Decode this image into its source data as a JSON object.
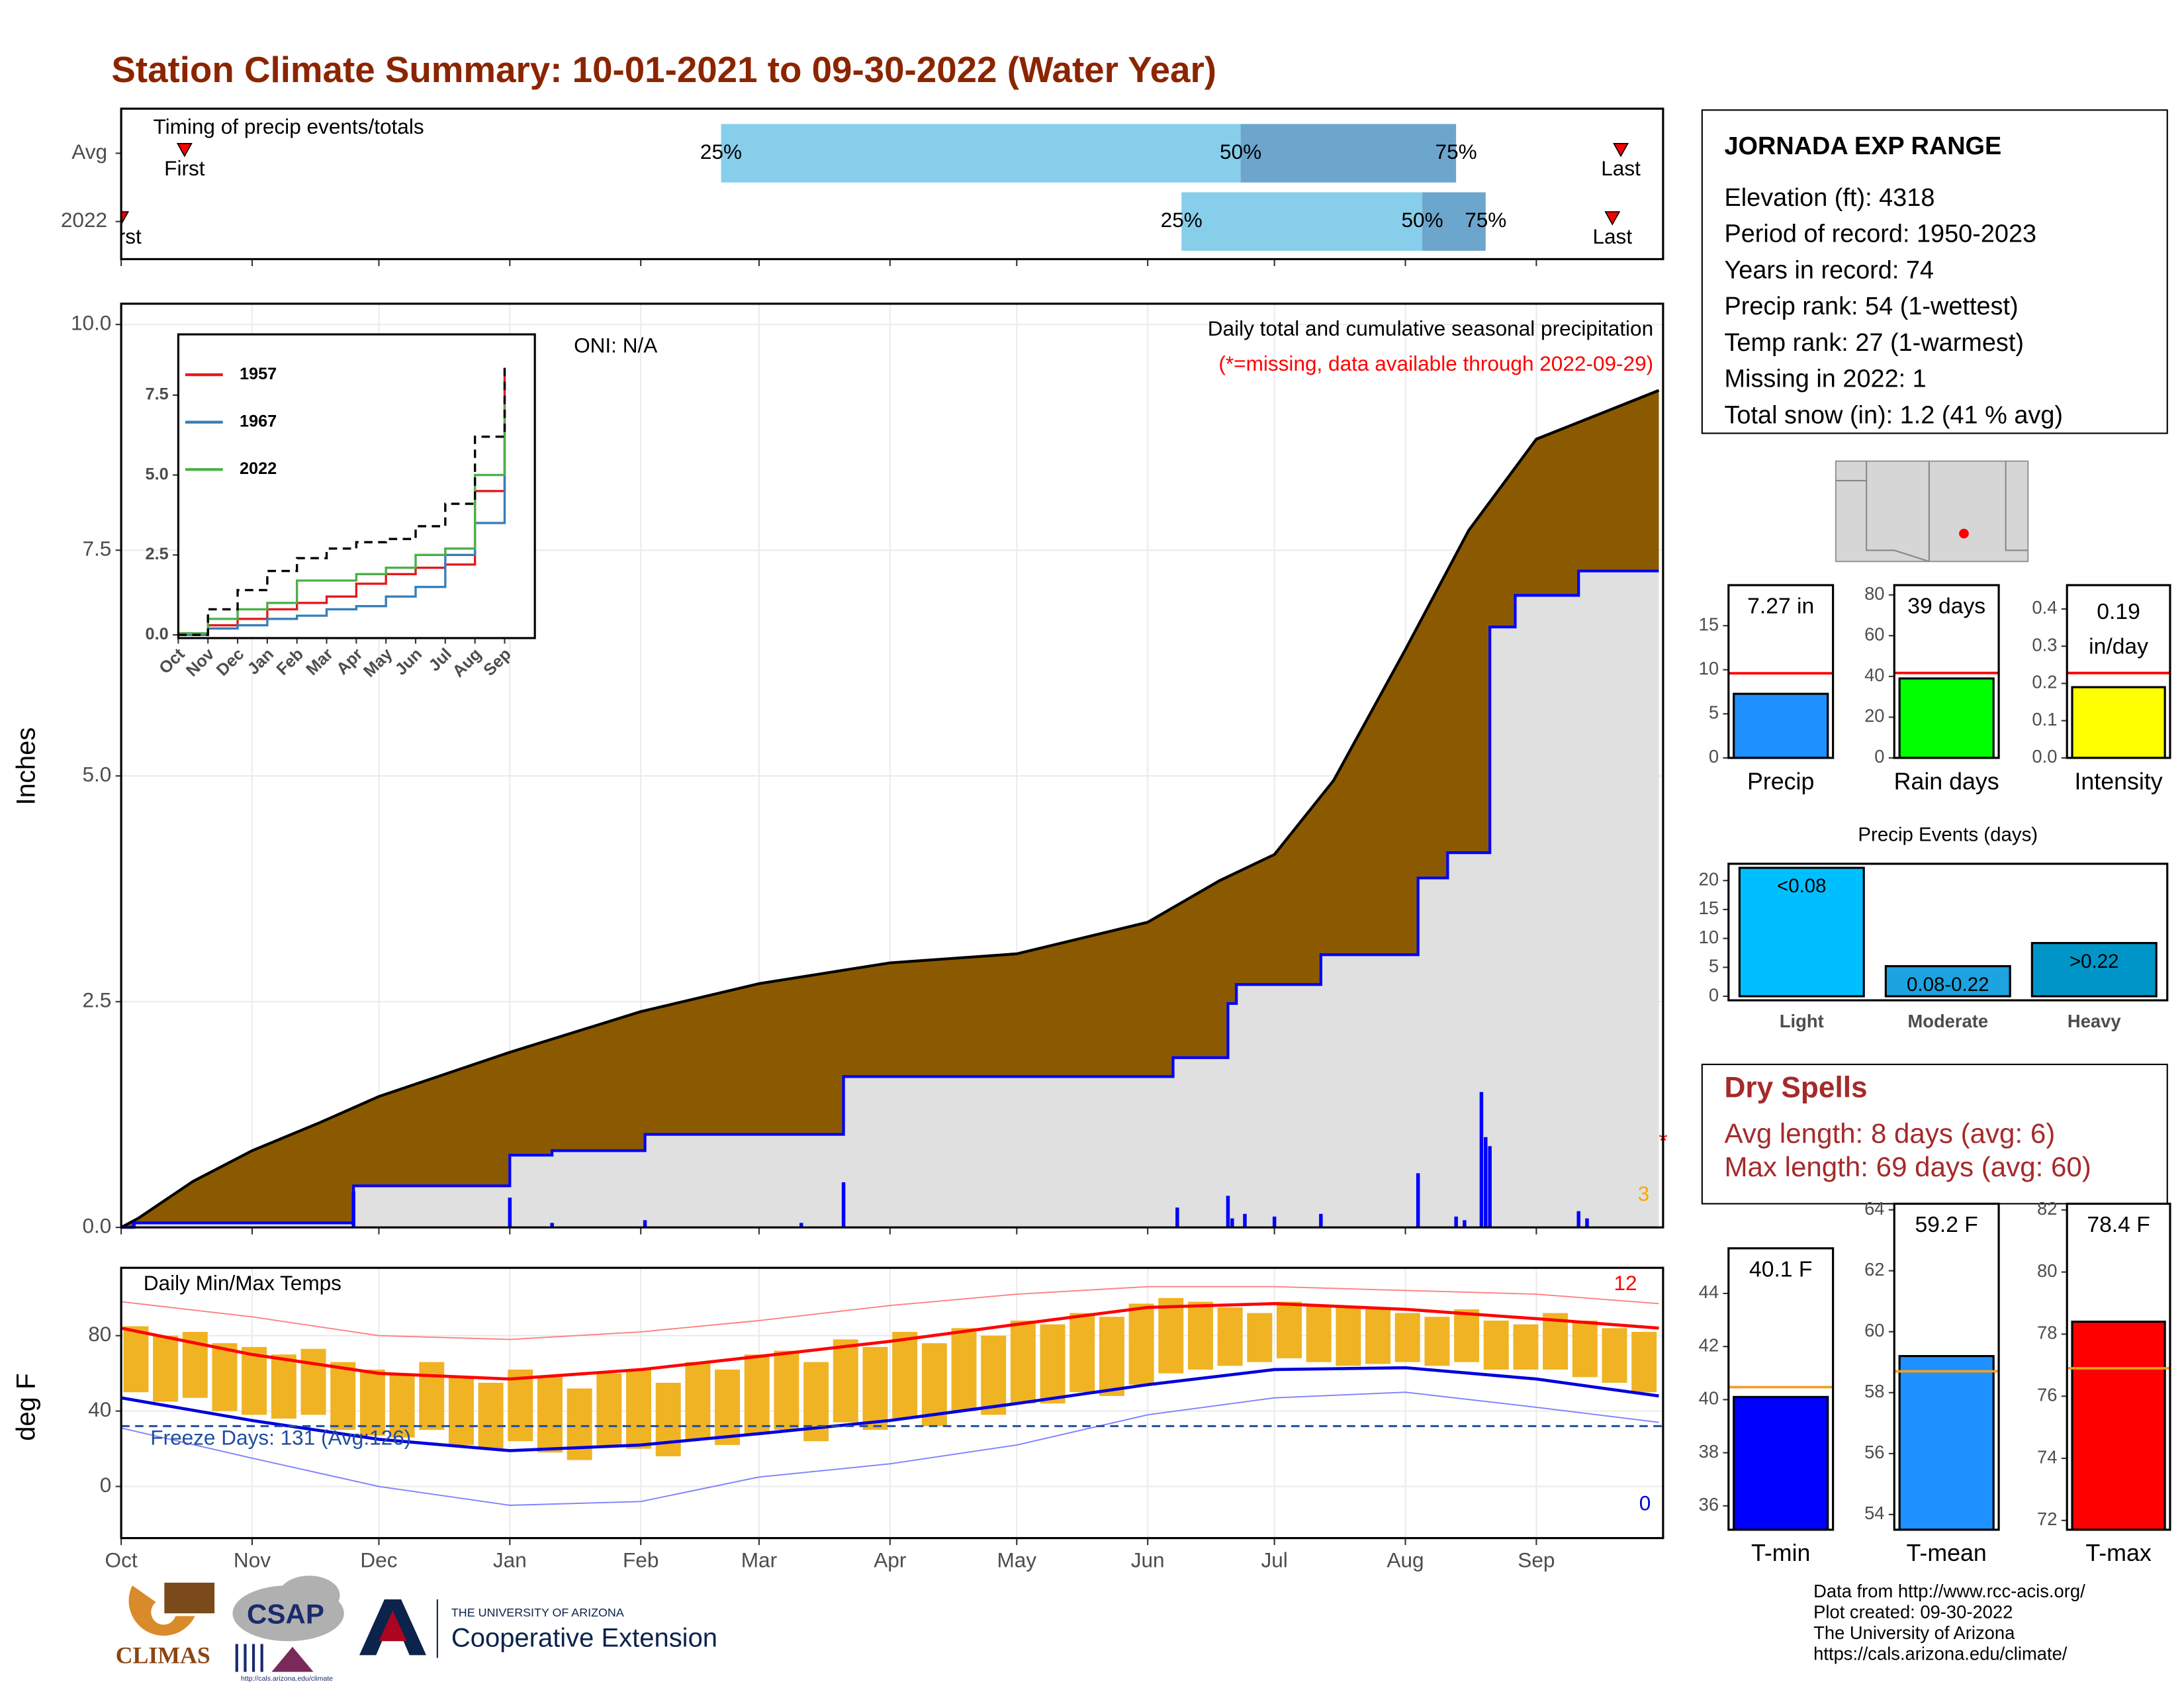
{
  "title": "Station Climate Summary: 10-01-2021 to 09-30-2022 (Water Year)",
  "station_info": {
    "title": "JORNADA EXP RANGE",
    "lines": [
      "Elevation (ft): 4318",
      "Period of record: 1950-2023",
      "Years in record: 74",
      "Precip rank: 54 (1-wettest)",
      "Temp rank: 27 (1-warmest)",
      "Missing in 2022: 1",
      "Total snow (in): 1.2 (41 % avg)"
    ]
  },
  "dry_spells": {
    "title": "Dry Spells",
    "lines": [
      "Avg length: 8 days (avg: 6)",
      "Max length: 69 days (avg: 60)"
    ]
  },
  "footer": [
    "Data from http://www.rcc-acis.org/",
    "Plot created: 09-30-2022",
    "The University of Arizona",
    "https://cals.arizona.edu/climate/"
  ],
  "logos": {
    "climas": "CLIMAS",
    "csap": "CSAP",
    "csap_url": "http://cals.arizona.edu/climate",
    "ua_line1": "THE UNIVERSITY OF ARIZONA",
    "ua_line2": "Cooperative Extension"
  },
  "chart_data": [
    {
      "type": "timing",
      "title": "Timing of precip events/totals",
      "rows": [
        "Avg",
        "2022"
      ],
      "quantile_labels": [
        "25%",
        "50%",
        "75%"
      ],
      "quantiles": [
        [
          142,
          265,
          316
        ],
        [
          251,
          308,
          323
        ]
      ],
      "first": [
        15,
        0
      ],
      "last": [
        355,
        353
      ],
      "first_label": "First",
      "last_label": "Last",
      "colors": [
        "#87ceeb",
        "#6ca6cd"
      ],
      "marker_color": "#ff0000",
      "xlim": [
        0,
        365
      ]
    },
    {
      "type": "step",
      "title": "Daily total and cumulative seasonal precipitation",
      "subtitle": "(*=missing, data available through 2022-09-29)",
      "annotation": "ONI: N/A",
      "y_label": "Inches",
      "missing_label": "*",
      "count_label": "3",
      "grid": true,
      "xlim": [
        0,
        365
      ],
      "xticks": [
        0,
        31,
        61,
        92,
        123,
        151,
        182,
        212,
        243,
        273,
        304,
        335
      ],
      "ylim": [
        0,
        10.23
      ],
      "yticks": [
        {
          "value": 0,
          "label": "0.0"
        },
        {
          "value": 2.5,
          "label": "2.5"
        },
        {
          "value": 5,
          "label": "5.0"
        },
        {
          "value": 7.5,
          "label": "7.5"
        },
        {
          "value": 10,
          "label": "10.0"
        }
      ],
      "series": [
        {
          "color": "#000000",
          "fill": "#8b5a00",
          "step": false,
          "x": [
            0,
            4,
            17,
            31,
            47,
            61,
            92,
            123,
            151,
            182,
            212,
            243,
            260,
            273,
            287,
            304,
            319,
            335,
            364
          ],
          "values": [
            0,
            0.1,
            0.51,
            0.85,
            1.16,
            1.45,
            1.94,
            2.39,
            2.7,
            2.93,
            3.03,
            3.38,
            3.84,
            4.13,
            4.95,
            6.4,
            7.72,
            8.73,
            9.27
          ]
        },
        {
          "color": "#0000ff",
          "fill": "#e0e0e0",
          "step": true,
          "x": [
            0,
            3,
            55,
            92,
            102,
            124,
            171,
            249,
            262,
            264,
            284,
            307,
            314,
            324,
            330,
            345,
            364
          ],
          "values": [
            0,
            0.05,
            0.46,
            0.8,
            0.85,
            1.03,
            1.67,
            1.88,
            2.48,
            2.69,
            3.02,
            3.87,
            4.15,
            6.65,
            7.0,
            7.27,
            7.27
          ]
        }
      ],
      "daily": {
        "color": "#0000ff",
        "x": [
          3,
          55,
          92,
          102,
          124,
          161,
          171,
          250,
          262,
          263,
          266,
          273,
          284,
          307,
          316,
          318,
          322,
          323,
          324,
          345,
          347
        ],
        "values": [
          0.05,
          0.4,
          0.33,
          0.05,
          0.08,
          0.05,
          0.5,
          0.22,
          0.35,
          0.1,
          0.15,
          0.12,
          0.15,
          0.6,
          0.12,
          0.08,
          1.5,
          1.0,
          0.9,
          0.18,
          0.1
        ]
      }
    },
    {
      "type": "line",
      "categories": [
        "Oct",
        "Nov",
        "Dec",
        "Jan",
        "Feb",
        "Mar",
        "Apr",
        "May",
        "Jun",
        "Jul",
        "Aug",
        "Sep"
      ],
      "ylim": [
        -0.1,
        9.4
      ],
      "yticks": [
        {
          "value": 0,
          "label": "0.0"
        },
        {
          "value": 2.5,
          "label": "2.5"
        },
        {
          "value": 5,
          "label": "5.0"
        },
        {
          "value": 7.5,
          "label": "7.5"
        }
      ],
      "series": [
        {
          "name": "1957",
          "color": "#e41a1c",
          "values": [
            0,
            0.3,
            0.5,
            0.8,
            1.0,
            1.2,
            1.6,
            1.9,
            2.1,
            2.2,
            4.5,
            8.3
          ]
        },
        {
          "name": "1967",
          "color": "#377eb8",
          "values": [
            0,
            0.2,
            0.3,
            0.5,
            0.6,
            0.8,
            0.9,
            1.2,
            1.5,
            2.5,
            3.5,
            6.0
          ]
        },
        {
          "name": "2022",
          "color": "#4daf4a",
          "values": [
            0.05,
            0.5,
            0.8,
            1.0,
            1.7,
            1.7,
            1.9,
            2.1,
            2.5,
            2.7,
            5.0,
            7.2
          ]
        },
        {
          "color": "#000000",
          "dash": true,
          "values": [
            0,
            0.8,
            1.4,
            2.0,
            2.4,
            2.7,
            2.9,
            3.0,
            3.4,
            4.1,
            6.2,
            8.5
          ]
        }
      ]
    },
    {
      "type": "temp",
      "title": "Daily Min/Max Temps",
      "y_label": "deg F",
      "freeze": 32,
      "freeze_color": "#1f4e9e",
      "freeze_label": "Freeze Days: 131 (Avg:126)",
      "high_count_label": "12",
      "low_count_label": "0",
      "grid": true,
      "bar_color": "#f0b323",
      "xlim": [
        0,
        365
      ],
      "xticks": [
        {
          "value": 0,
          "label": "Oct"
        },
        {
          "value": 31,
          "label": "Nov"
        },
        {
          "value": 61,
          "label": "Dec"
        },
        {
          "value": 92,
          "label": "Jan"
        },
        {
          "value": 123,
          "label": "Feb"
        },
        {
          "value": 151,
          "label": "Mar"
        },
        {
          "value": 182,
          "label": "Apr"
        },
        {
          "value": 212,
          "label": "May"
        },
        {
          "value": 243,
          "label": "Jun"
        },
        {
          "value": 273,
          "label": "Jul"
        },
        {
          "value": 304,
          "label": "Aug"
        },
        {
          "value": 335,
          "label": "Sep"
        }
      ],
      "ylim": [
        -27.4,
        116
      ],
      "yticks": [
        0,
        40,
        80
      ],
      "x": [
        3.5,
        10.5,
        17.5,
        24.5,
        31.5,
        38.5,
        45.5,
        52.5,
        59.5,
        66.5,
        73.5,
        80.5,
        87.5,
        94.5,
        101.5,
        108.5,
        115.5,
        122.5,
        129.5,
        136.5,
        143.5,
        150.5,
        157.5,
        164.5,
        171.5,
        178.5,
        185.5,
        192.5,
        199.5,
        206.5,
        213.5,
        220.5,
        227.5,
        234.5,
        241.5,
        248.5,
        255.5,
        262.5,
        269.5,
        276.5,
        283.5,
        290.5,
        297.5,
        304.5,
        311.5,
        318.5,
        325.5,
        332.5,
        339.5,
        346.5,
        353.5,
        360.5
      ],
      "tmax": [
        85,
        80,
        82,
        76,
        74,
        70,
        73,
        66,
        62,
        60,
        66,
        58,
        55,
        62,
        58,
        52,
        60,
        62,
        55,
        66,
        62,
        70,
        72,
        66,
        78,
        74,
        82,
        76,
        84,
        80,
        88,
        86,
        92,
        90,
        97,
        100,
        98,
        95,
        92,
        98,
        96,
        95,
        94,
        92,
        90,
        94,
        88,
        86,
        92,
        88,
        84,
        82
      ],
      "tmin": [
        50,
        45,
        47,
        40,
        38,
        36,
        38,
        30,
        27,
        26,
        30,
        22,
        20,
        24,
        18,
        14,
        22,
        20,
        16,
        25,
        22,
        28,
        30,
        24,
        34,
        30,
        36,
        32,
        40,
        38,
        44,
        44,
        50,
        48,
        54,
        60,
        62,
        64,
        66,
        68,
        66,
        64,
        65,
        66,
        64,
        66,
        62,
        62,
        62,
        58,
        55,
        50
      ],
      "line_x": [
        0,
        31,
        61,
        92,
        123,
        151,
        182,
        212,
        243,
        273,
        304,
        335,
        364
      ],
      "avg_lines": [
        {
          "color": "#ff0000",
          "values": [
            84,
            70,
            60,
            57,
            62,
            69,
            77,
            86,
            95,
            97,
            94,
            89,
            84
          ]
        },
        {
          "color": "#0000dd",
          "values": [
            47,
            35,
            25,
            19,
            22,
            28,
            35,
            44,
            54,
            62,
            63,
            57,
            48
          ]
        }
      ],
      "record_lines": [
        {
          "color": "#ff8080",
          "values": [
            98,
            90,
            80,
            78,
            82,
            88,
            96,
            102,
            106,
            106,
            104,
            102,
            97
          ]
        },
        {
          "color": "#8080ff",
          "values": [
            31,
            15,
            0,
            -10,
            -8,
            5,
            12,
            22,
            38,
            47,
            50,
            42,
            34
          ]
        }
      ]
    },
    {
      "type": "bar",
      "categories": [
        "Precip"
      ],
      "values": [
        7.27
      ],
      "value_labels": [
        "7.27 in"
      ],
      "avg": 9.6,
      "avg_color": "#ff0000",
      "colors": [
        "#1e90ff"
      ],
      "ylim": [
        0,
        19.6
      ],
      "yticks": [
        0,
        5,
        10,
        15
      ]
    },
    {
      "type": "bar",
      "categories": [
        "Rain days"
      ],
      "values": [
        39
      ],
      "value_labels": [
        "39 days"
      ],
      "avg": 41.7,
      "avg_color": "#ff0000",
      "colors": [
        "#00ff00"
      ],
      "ylim": [
        0,
        84.8
      ],
      "yticks": [
        0,
        20,
        40,
        60,
        80
      ]
    },
    {
      "type": "bar",
      "categories": [
        "Intensity"
      ],
      "values": [
        0.19
      ],
      "value_labels": [
        "0.19"
      ],
      "unit_label": "in/day",
      "avg": 0.228,
      "avg_color": "#ff0000",
      "colors": [
        "#ffff00"
      ],
      "ylim": [
        0,
        0.464
      ],
      "yticks": [
        {
          "value": 0,
          "label": "0.0"
        },
        {
          "value": 0.1,
          "label": "0.1"
        },
        {
          "value": 0.2,
          "label": "0.2"
        },
        {
          "value": 0.3,
          "label": "0.3"
        },
        {
          "value": 0.4,
          "label": "0.4"
        }
      ]
    },
    {
      "type": "bar",
      "title": "Precip Events (days)",
      "categories": [
        "Light",
        "Moderate",
        "Heavy"
      ],
      "values": [
        22.2,
        5.2,
        9.2
      ],
      "bin_labels": [
        "<0.08",
        "0.08-0.22",
        ">0.22"
      ],
      "colors": [
        "#00bfff",
        "#1ca3e0",
        "#0095c8"
      ],
      "ylim": [
        -0.7,
        22.9
      ],
      "yticks": [
        0,
        5,
        10,
        15,
        20
      ]
    },
    {
      "type": "bar",
      "categories": [
        "T-min"
      ],
      "values": [
        40.1
      ],
      "value_labels": [
        "40.1 F"
      ],
      "avg": 40.47,
      "avg_color": "#f0a020",
      "colors": [
        "#0000ff"
      ],
      "ylim": [
        35.1,
        45.7
      ],
      "yticks": [
        36,
        38,
        40,
        42,
        44
      ]
    },
    {
      "type": "bar",
      "categories": [
        "T-mean"
      ],
      "values": [
        59.2
      ],
      "value_labels": [
        "59.2 F"
      ],
      "avg": 58.7,
      "avg_color": "#f0a020",
      "colors": [
        "#1e90ff"
      ],
      "ylim": [
        53.5,
        64.2
      ],
      "yticks": [
        54,
        56,
        58,
        60,
        62,
        64
      ]
    },
    {
      "type": "bar",
      "categories": [
        "T-max"
      ],
      "values": [
        78.4
      ],
      "value_labels": [
        "78.4 F"
      ],
      "avg": 76.9,
      "avg_color": "#f0a020",
      "colors": [
        "#ff0000"
      ],
      "ylim": [
        71.7,
        82.2
      ],
      "yticks": [
        72,
        74,
        76,
        78,
        80,
        82
      ]
    }
  ]
}
